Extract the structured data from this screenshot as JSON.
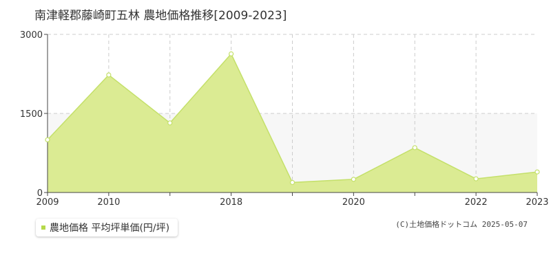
{
  "colors": {
    "fill": "#dbeb93",
    "line": "#c4e06a",
    "marker_fill": "#ffffff",
    "marker_stroke": "#c4e06a",
    "grid": "#cccccc",
    "axis": "#444444",
    "band": "#f7f7f7",
    "legend_swatch": "#b5d94a"
  },
  "legend": {
    "label": "農地価格 平均坪単価(円/坪)"
  },
  "credit": "(C)土地価格ドットコム 2025-05-07",
  "chart_data": {
    "type": "area",
    "title": "南津軽郡藤崎町五林 農地価格推移[2009-2023]",
    "x": [
      2009,
      2010,
      2011,
      2018,
      2019,
      2020,
      2021,
      2022,
      2023
    ],
    "x_tick_labels": [
      "2009",
      "2010",
      "",
      "2018",
      "",
      "2020",
      "",
      "2022",
      "2023"
    ],
    "series": [
      {
        "name": "農地価格 平均坪単価(円/坪)",
        "values": [
          1000,
          2230,
          1320,
          2630,
          190,
          250,
          850,
          260,
          390
        ]
      }
    ],
    "ylim": [
      0,
      3000
    ],
    "yticks": [
      0,
      1500,
      3000
    ],
    "xlabel": "",
    "ylabel": "",
    "grid": true,
    "legend_position": "bottom-left"
  }
}
